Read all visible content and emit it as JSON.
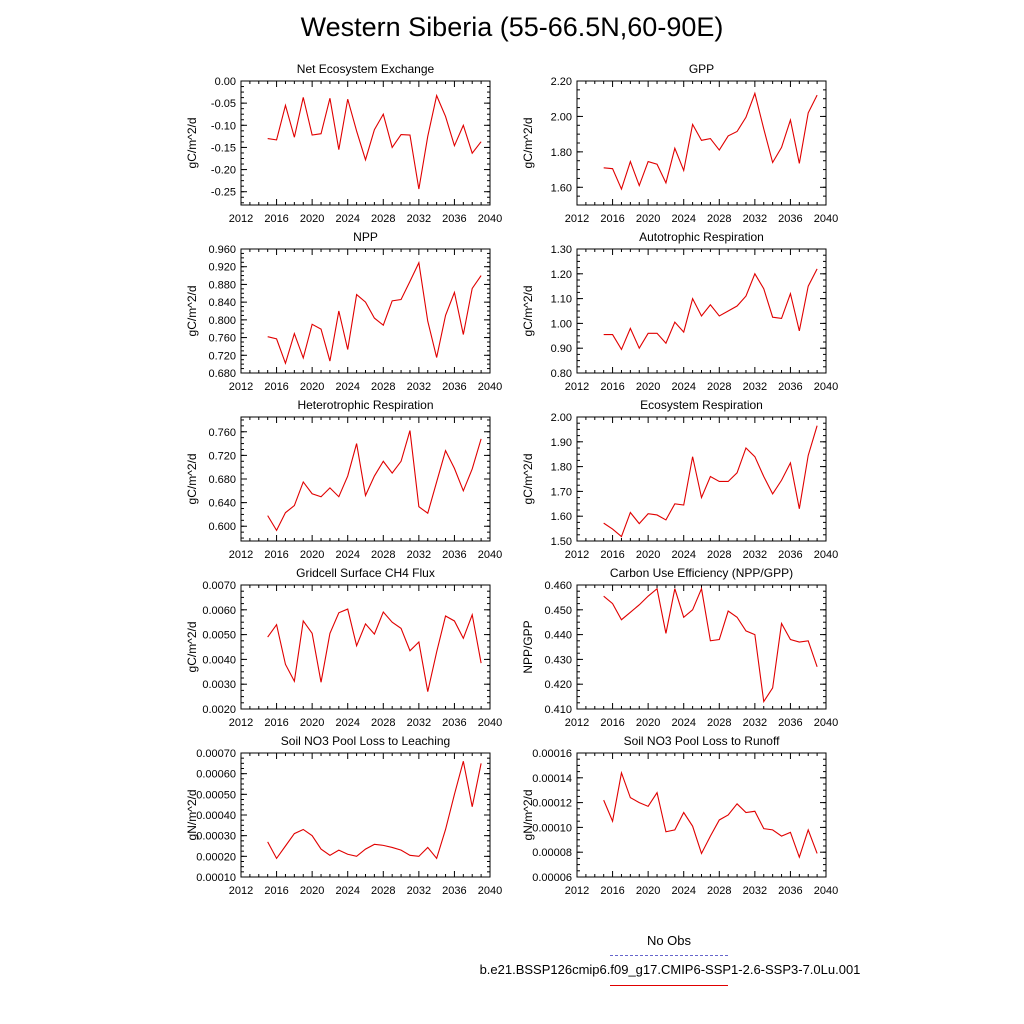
{
  "title": "Western Siberia (55-66.5N,60-90E)",
  "legend": {
    "obs_label": "No Obs",
    "obs_color": "#6666cc",
    "model_label": "b.e21.BSSP126cmip6.f09_g17.CMIP6-SSP1-2.6-SSP3-7.0Lu.001",
    "model_color": "#e00000"
  },
  "chart_data": [
    {
      "type": "line",
      "title": "Net Ecosystem Exchange",
      "ylabel": "gC/m^2/d",
      "x": [
        2015,
        2016,
        2017,
        2018,
        2019,
        2020,
        2021,
        2022,
        2023,
        2024,
        2025,
        2026,
        2027,
        2028,
        2029,
        2030,
        2031,
        2032,
        2033,
        2034,
        2035,
        2036,
        2037,
        2038,
        2039
      ],
      "values": [
        -0.13,
        -0.133,
        -0.055,
        -0.127,
        -0.037,
        -0.122,
        -0.119,
        -0.039,
        -0.155,
        -0.041,
        -0.113,
        -0.178,
        -0.11,
        -0.075,
        -0.15,
        -0.121,
        -0.122,
        -0.244,
        -0.125,
        -0.033,
        -0.08,
        -0.146,
        -0.1,
        -0.163,
        -0.137
      ],
      "xlim": [
        2012,
        2040
      ],
      "ylim": [
        -0.28,
        0.0
      ],
      "xticks": [
        "2012",
        "2016",
        "2020",
        "2024",
        "2028",
        "2032",
        "2036",
        "2040"
      ],
      "yticks": [
        "0.00",
        "-0.05",
        "-0.10",
        "-0.15",
        "-0.20",
        "-0.25"
      ]
    },
    {
      "type": "line",
      "title": "GPP",
      "ylabel": "gC/m^2/d",
      "x": [
        2015,
        2016,
        2017,
        2018,
        2019,
        2020,
        2021,
        2022,
        2023,
        2024,
        2025,
        2026,
        2027,
        2028,
        2029,
        2030,
        2031,
        2032,
        2033,
        2034,
        2035,
        2036,
        2037,
        2038,
        2039
      ],
      "values": [
        1.71,
        1.705,
        1.59,
        1.745,
        1.61,
        1.745,
        1.73,
        1.625,
        1.82,
        1.695,
        1.955,
        1.865,
        1.875,
        1.81,
        1.89,
        1.915,
        1.995,
        2.13,
        1.93,
        1.74,
        1.825,
        1.98,
        1.735,
        2.02,
        2.12
      ],
      "xlim": [
        2012,
        2040
      ],
      "ylim": [
        1.5,
        2.2
      ],
      "xticks": [
        "2012",
        "2016",
        "2020",
        "2024",
        "2028",
        "2032",
        "2036",
        "2040"
      ],
      "yticks": [
        "1.60",
        "1.80",
        "2.00",
        "2.20"
      ]
    },
    {
      "type": "line",
      "title": "NPP",
      "ylabel": "gC/m^2/d",
      "x": [
        2015,
        2016,
        2017,
        2018,
        2019,
        2020,
        2021,
        2022,
        2023,
        2024,
        2025,
        2026,
        2027,
        2028,
        2029,
        2030,
        2031,
        2032,
        2033,
        2034,
        2035,
        2036,
        2037,
        2038,
        2039
      ],
      "values": [
        0.762,
        0.757,
        0.702,
        0.769,
        0.714,
        0.79,
        0.779,
        0.707,
        0.82,
        0.733,
        0.857,
        0.84,
        0.804,
        0.788,
        0.843,
        0.846,
        0.887,
        0.929,
        0.797,
        0.715,
        0.81,
        0.862,
        0.767,
        0.871,
        0.9
      ],
      "xlim": [
        2012,
        2040
      ],
      "ylim": [
        0.68,
        0.96
      ],
      "xticks": [
        "2012",
        "2016",
        "2020",
        "2024",
        "2028",
        "2032",
        "2036",
        "2040"
      ],
      "yticks": [
        "0.680",
        "0.720",
        "0.760",
        "0.800",
        "0.840",
        "0.880",
        "0.920",
        "0.960"
      ]
    },
    {
      "type": "line",
      "title": "Autotrophic Respiration",
      "ylabel": "gC/m^2/d",
      "x": [
        2015,
        2016,
        2017,
        2018,
        2019,
        2020,
        2021,
        2022,
        2023,
        2024,
        2025,
        2026,
        2027,
        2028,
        2029,
        2030,
        2031,
        2032,
        2033,
        2034,
        2035,
        2036,
        2037,
        2038,
        2039
      ],
      "values": [
        0.955,
        0.955,
        0.895,
        0.98,
        0.9,
        0.96,
        0.96,
        0.92,
        1.005,
        0.965,
        1.1,
        1.03,
        1.075,
        1.03,
        1.05,
        1.07,
        1.11,
        1.2,
        1.14,
        1.025,
        1.02,
        1.12,
        0.97,
        1.15,
        1.22
      ],
      "xlim": [
        2012,
        2040
      ],
      "ylim": [
        0.8,
        1.3
      ],
      "xticks": [
        "2012",
        "2016",
        "2020",
        "2024",
        "2028",
        "2032",
        "2036",
        "2040"
      ],
      "yticks": [
        "0.80",
        "0.90",
        "1.00",
        "1.10",
        "1.20",
        "1.30"
      ]
    },
    {
      "type": "line",
      "title": "Heterotrophic Respiration",
      "ylabel": "gC/m^2/d",
      "x": [
        2015,
        2016,
        2017,
        2018,
        2019,
        2020,
        2021,
        2022,
        2023,
        2024,
        2025,
        2026,
        2027,
        2028,
        2029,
        2030,
        2031,
        2032,
        2033,
        2034,
        2035,
        2036,
        2037,
        2038,
        2039
      ],
      "values": [
        0.618,
        0.593,
        0.623,
        0.635,
        0.675,
        0.655,
        0.65,
        0.665,
        0.65,
        0.685,
        0.74,
        0.652,
        0.685,
        0.71,
        0.69,
        0.71,
        0.762,
        0.633,
        0.622,
        0.675,
        0.728,
        0.698,
        0.66,
        0.697,
        0.748
      ],
      "xlim": [
        2012,
        2040
      ],
      "ylim": [
        0.575,
        0.785
      ],
      "xticks": [
        "2012",
        "2016",
        "2020",
        "2024",
        "2028",
        "2032",
        "2036",
        "2040"
      ],
      "yticks": [
        "0.600",
        "0.640",
        "0.680",
        "0.720",
        "0.760"
      ]
    },
    {
      "type": "line",
      "title": "Ecosystem Respiration",
      "ylabel": "gC/m^2/d",
      "x": [
        2015,
        2016,
        2017,
        2018,
        2019,
        2020,
        2021,
        2022,
        2023,
        2024,
        2025,
        2026,
        2027,
        2028,
        2029,
        2030,
        2031,
        2032,
        2033,
        2034,
        2035,
        2036,
        2037,
        2038,
        2039
      ],
      "values": [
        1.572,
        1.548,
        1.518,
        1.615,
        1.57,
        1.61,
        1.605,
        1.585,
        1.65,
        1.645,
        1.84,
        1.675,
        1.76,
        1.74,
        1.74,
        1.775,
        1.875,
        1.84,
        1.76,
        1.69,
        1.745,
        1.815,
        1.63,
        1.845,
        1.965
      ],
      "xlim": [
        2012,
        2040
      ],
      "ylim": [
        1.5,
        2.0
      ],
      "xticks": [
        "2012",
        "2016",
        "2020",
        "2024",
        "2028",
        "2032",
        "2036",
        "2040"
      ],
      "yticks": [
        "1.50",
        "1.60",
        "1.70",
        "1.80",
        "1.90",
        "2.00"
      ]
    },
    {
      "type": "line",
      "title": "Gridcell Surface CH4 Flux",
      "ylabel": "gC/m^2/d",
      "x": [
        2015,
        2016,
        2017,
        2018,
        2019,
        2020,
        2021,
        2022,
        2023,
        2024,
        2025,
        2026,
        2027,
        2028,
        2029,
        2030,
        2031,
        2032,
        2033,
        2034,
        2035,
        2036,
        2037,
        2038,
        2039
      ],
      "values": [
        0.0049,
        0.0054,
        0.0038,
        0.00312,
        0.00555,
        0.00505,
        0.00308,
        0.00505,
        0.00588,
        0.00603,
        0.00455,
        0.00543,
        0.00502,
        0.00591,
        0.0055,
        0.00525,
        0.00435,
        0.0047,
        0.0027,
        0.0043,
        0.00575,
        0.00555,
        0.00485,
        0.0058,
        0.00385
      ],
      "xlim": [
        2012,
        2040
      ],
      "ylim": [
        0.002,
        0.007
      ],
      "xticks": [
        "2012",
        "2016",
        "2020",
        "2024",
        "2028",
        "2032",
        "2036",
        "2040"
      ],
      "yticks": [
        "0.0020",
        "0.0030",
        "0.0040",
        "0.0050",
        "0.0060",
        "0.0070"
      ]
    },
    {
      "type": "line",
      "title": "Carbon Use Efficiency (NPP/GPP)",
      "ylabel": "NPP/GPP",
      "x": [
        2015,
        2016,
        2017,
        2018,
        2019,
        2020,
        2021,
        2022,
        2023,
        2024,
        2025,
        2026,
        2027,
        2028,
        2029,
        2030,
        2031,
        2032,
        2033,
        2034,
        2035,
        2036,
        2037,
        2038,
        2039
      ],
      "values": [
        0.4555,
        0.4525,
        0.446,
        0.449,
        0.452,
        0.4555,
        0.4585,
        0.4405,
        0.4585,
        0.447,
        0.45,
        0.4585,
        0.4375,
        0.438,
        0.4495,
        0.447,
        0.4415,
        0.44,
        0.413,
        0.4185,
        0.4445,
        0.438,
        0.437,
        0.4375,
        0.427
      ],
      "xlim": [
        2012,
        2040
      ],
      "ylim": [
        0.41,
        0.46
      ],
      "xticks": [
        "2012",
        "2016",
        "2020",
        "2024",
        "2028",
        "2032",
        "2036",
        "2040"
      ],
      "yticks": [
        "0.410",
        "0.420",
        "0.430",
        "0.440",
        "0.450",
        "0.460"
      ]
    },
    {
      "type": "line",
      "title": "Soil NO3 Pool Loss to Leaching",
      "ylabel": "gN/m^2/d",
      "x": [
        2015,
        2016,
        2017,
        2018,
        2019,
        2020,
        2021,
        2022,
        2023,
        2024,
        2025,
        2026,
        2027,
        2028,
        2029,
        2030,
        2031,
        2032,
        2033,
        2034,
        2035,
        2036,
        2037,
        2038,
        2039
      ],
      "values": [
        0.00027,
        0.00019,
        0.00025,
        0.00031,
        0.00033,
        0.0003,
        0.000235,
        0.000205,
        0.00023,
        0.00021,
        0.0002,
        0.000235,
        0.000258,
        0.000253,
        0.000243,
        0.00023,
        0.000205,
        0.0002,
        0.000243,
        0.00019,
        0.00033,
        0.0005,
        0.00066,
        0.00044,
        0.00065
      ],
      "xlim": [
        2012,
        2040
      ],
      "ylim": [
        0.0001,
        0.0007
      ],
      "xticks": [
        "2012",
        "2016",
        "2020",
        "2024",
        "2028",
        "2032",
        "2036",
        "2040"
      ],
      "yticks": [
        "0.00010",
        "0.00020",
        "0.00030",
        "0.00040",
        "0.00050",
        "0.00060",
        "0.00070"
      ]
    },
    {
      "type": "line",
      "title": "Soil NO3 Pool Loss to Runoff",
      "ylabel": "gN/m^2/d",
      "x": [
        2015,
        2016,
        2017,
        2018,
        2019,
        2020,
        2021,
        2022,
        2023,
        2024,
        2025,
        2026,
        2027,
        2028,
        2029,
        2030,
        2031,
        2032,
        2033,
        2034,
        2035,
        2036,
        2037,
        2038,
        2039
      ],
      "values": [
        0.000122,
        0.000105,
        0.000144,
        0.000124,
        0.00012,
        0.000117,
        0.000128,
        9.65e-05,
        9.8e-05,
        0.000112,
        0.000101,
        7.9e-05,
        9.3e-05,
        0.000106,
        0.00011,
        0.000119,
        0.000112,
        0.000113,
        9.9e-05,
        9.8e-05,
        9.3e-05,
        9.6e-05,
        7.6e-05,
        9.8e-05,
        7.9e-05
      ],
      "xlim": [
        2012,
        2040
      ],
      "ylim": [
        6e-05,
        0.00016
      ],
      "xticks": [
        "2012",
        "2016",
        "2020",
        "2024",
        "2028",
        "2032",
        "2036",
        "2040"
      ],
      "yticks": [
        "0.00006",
        "0.00008",
        "0.00010",
        "0.00012",
        "0.00014",
        "0.00016"
      ]
    }
  ]
}
